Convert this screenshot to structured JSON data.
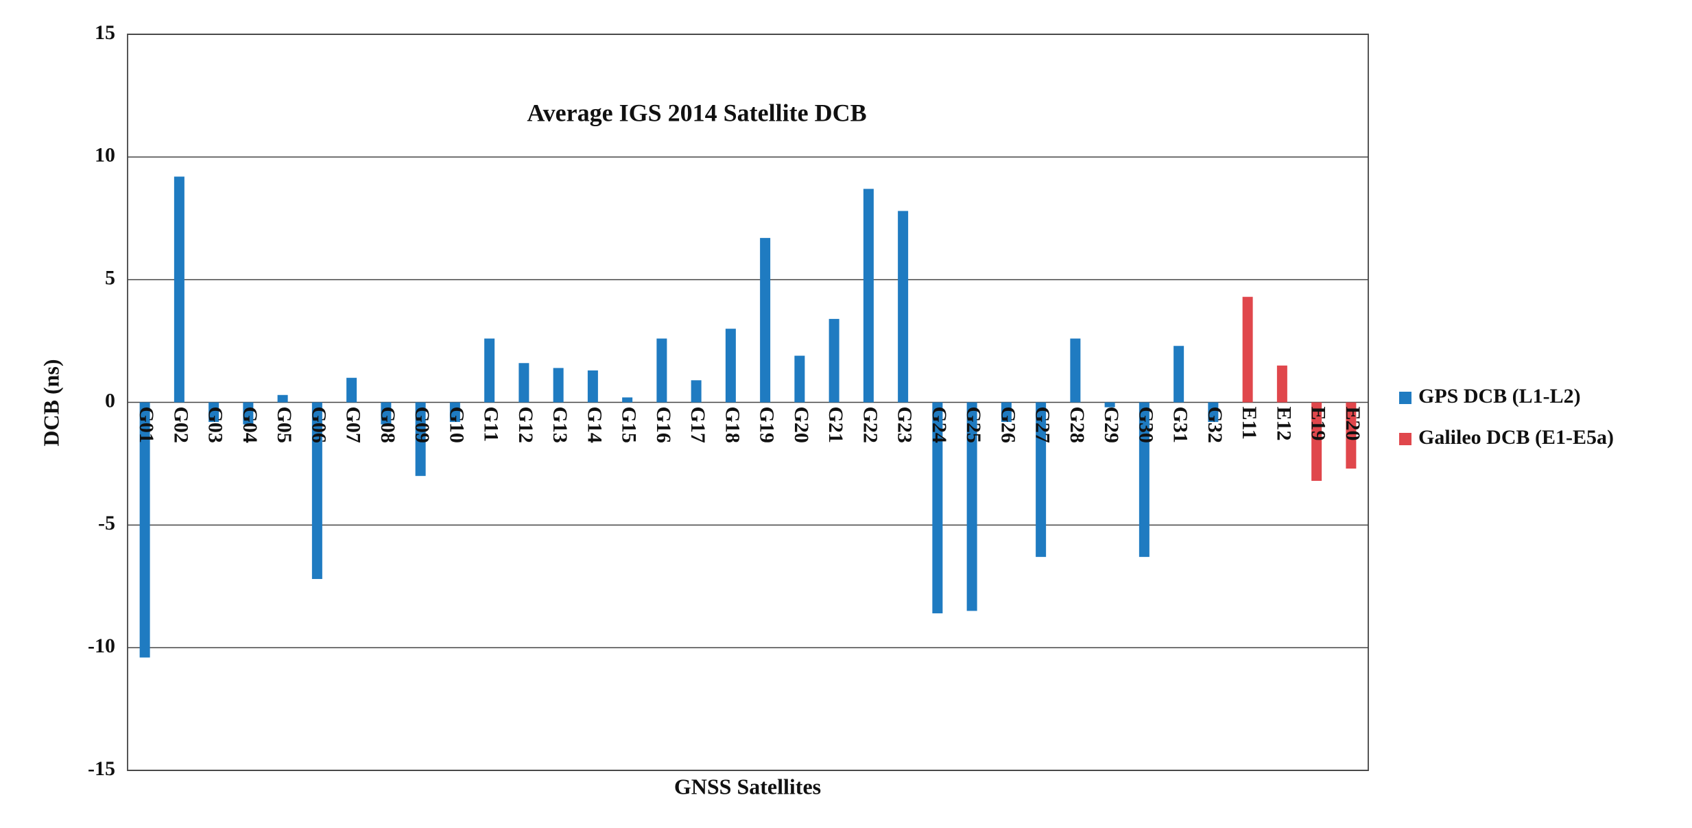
{
  "chart_data": {
    "type": "bar",
    "title": "Average IGS 2014 Satellite DCB",
    "x_label": "GNSS Satellites",
    "y_label": "DCB (ns)",
    "categories": [
      "G01",
      "G02",
      "G03",
      "G04",
      "G05",
      "G06",
      "G07",
      "G08",
      "G09",
      "G10",
      "G11",
      "G12",
      "G13",
      "G14",
      "G15",
      "G16",
      "G17",
      "G18",
      "G19",
      "G20",
      "G21",
      "G22",
      "G23",
      "G24",
      "G25",
      "G26",
      "G27",
      "G28",
      "G29",
      "G30",
      "G31",
      "G32",
      "E11",
      "E12",
      "E19",
      "E20"
    ],
    "series": [
      {
        "name": "GPS DCB (L1-L2)",
        "color": "#1f7bc1",
        "values": [
          -10.4,
          9.2,
          -0.8,
          -0.9,
          0.3,
          -7.2,
          1.0,
          -0.9,
          -3.0,
          -0.8,
          2.6,
          1.6,
          1.4,
          1.3,
          0.2,
          2.6,
          0.9,
          3.0,
          6.7,
          1.9,
          3.4,
          8.7,
          7.8,
          -8.6,
          -8.5,
          -0.8,
          -6.3,
          2.6,
          -0.2,
          -6.3,
          2.3,
          -0.8,
          null,
          null,
          null,
          null
        ]
      },
      {
        "name": "Galileo DCB (E1-E5a)",
        "color": "#e0474c",
        "values": [
          null,
          null,
          null,
          null,
          null,
          null,
          null,
          null,
          null,
          null,
          null,
          null,
          null,
          null,
          null,
          null,
          null,
          null,
          null,
          null,
          null,
          null,
          null,
          null,
          null,
          null,
          null,
          null,
          null,
          null,
          null,
          null,
          4.3,
          1.5,
          -3.2,
          -2.7
        ]
      }
    ],
    "ylim": [
      -15,
      15
    ],
    "yticks": [
      -15,
      -10,
      -5,
      0,
      5,
      10,
      15
    ],
    "grid": true,
    "legend": "right"
  }
}
